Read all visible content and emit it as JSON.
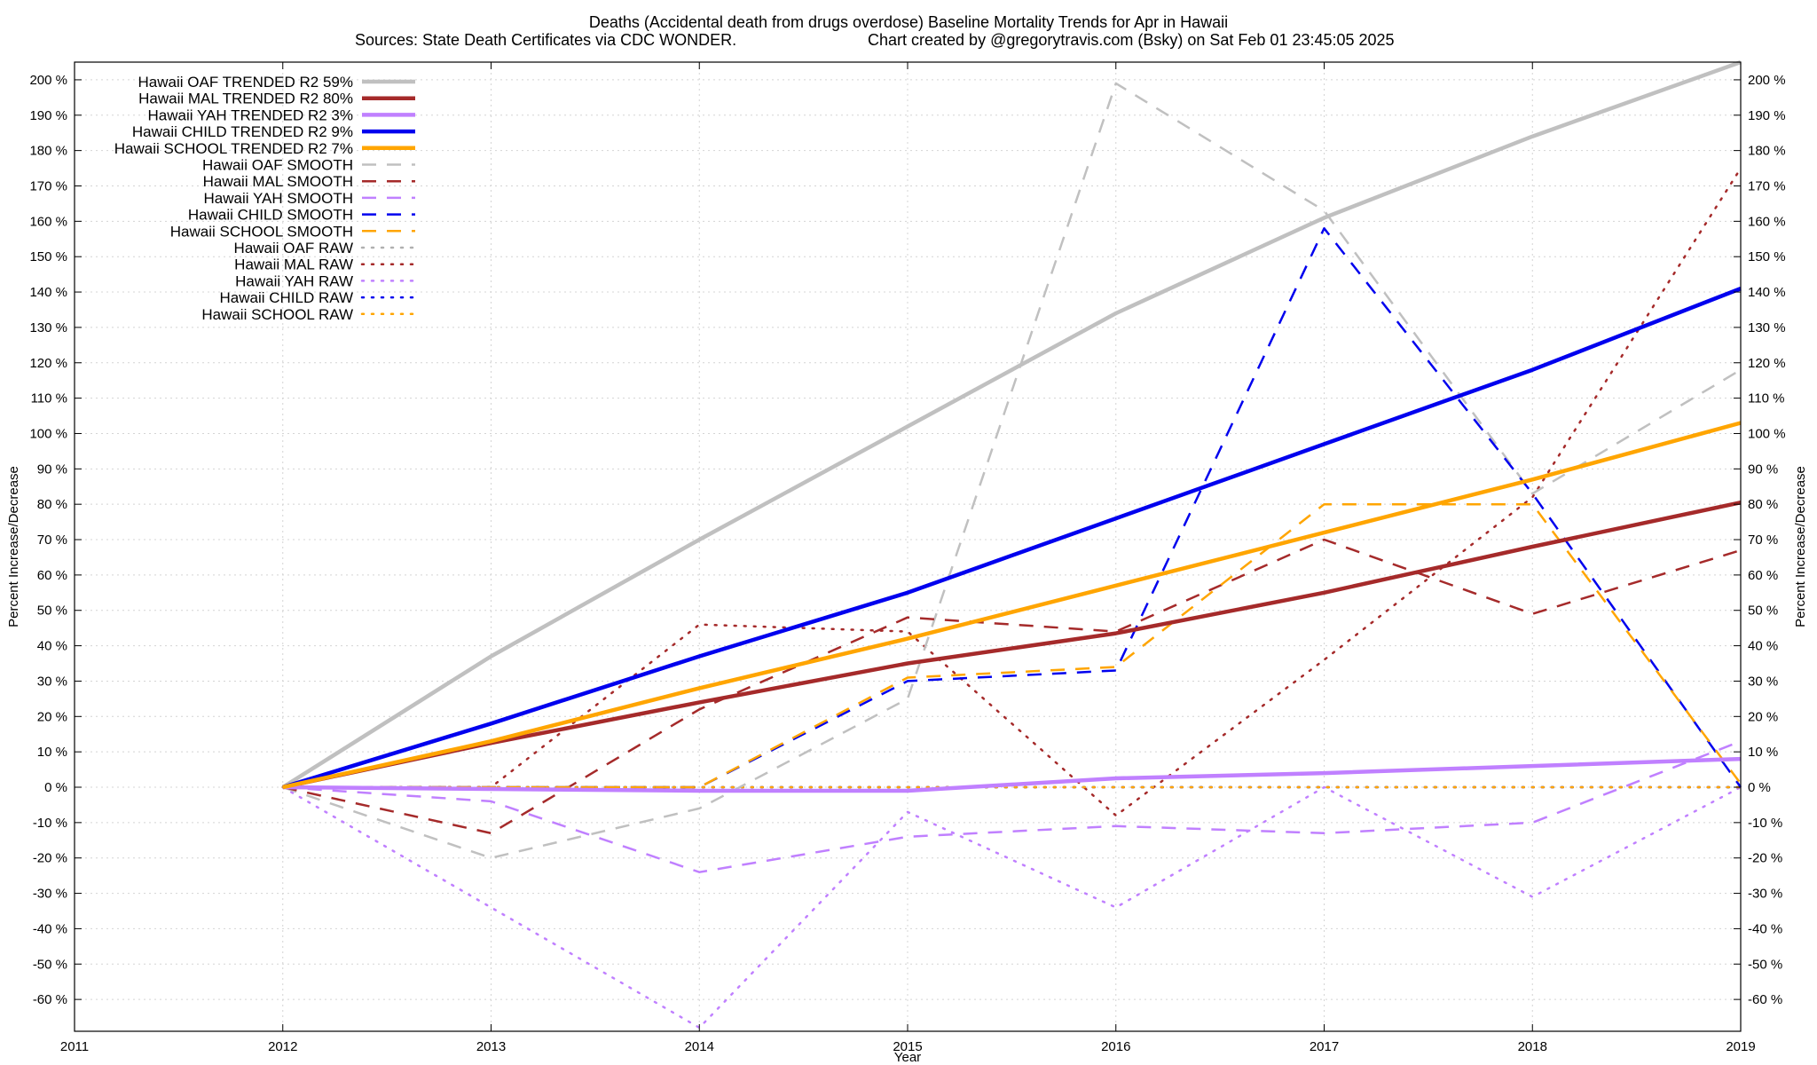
{
  "chart_data": {
    "type": "line",
    "title": "Deaths (Accidental death from drugs overdose)  Baseline Mortality Trends for Apr in Hawaii",
    "subtitle_left": "Sources: State Death Certificates via CDC WONDER.",
    "subtitle_right": "Chart created by @gregorytravis.com (Bsky) on Sat Feb 01 23:45:05 2025",
    "xlabel": "Year",
    "ylabel": "Percent Increase/Decrease",
    "y2label": "Percent Increase/Decrease",
    "xlim": [
      2011,
      2019
    ],
    "ylim": [
      -69,
      205
    ],
    "x_ticks": [
      2011,
      2012,
      2013,
      2014,
      2015,
      2016,
      2017,
      2018,
      2019
    ],
    "x_tick_labels": [
      "2011",
      "2012",
      "2013",
      "2014",
      "2015",
      "2016",
      "2017",
      "2018",
      "2019"
    ],
    "y_ticks": [
      -60,
      -50,
      -40,
      -30,
      -20,
      -10,
      0,
      10,
      20,
      30,
      40,
      50,
      60,
      70,
      80,
      90,
      100,
      110,
      120,
      130,
      140,
      150,
      160,
      170,
      180,
      190,
      200
    ],
    "y_tick_labels": [
      "-60 %",
      "-50 %",
      "-40 %",
      "-30 %",
      "-20 %",
      "-10 %",
      "0 %",
      "10 %",
      "20 %",
      "30 %",
      "40 %",
      "50 %",
      "60 %",
      "70 %",
      "80 %",
      "90 %",
      "100 %",
      "110 %",
      "120 %",
      "130 %",
      "140 %",
      "150 %",
      "160 %",
      "170 %",
      "180 %",
      "190 %",
      "200 %"
    ],
    "grid": true,
    "legend_position": "top-left",
    "x": [
      2012,
      2013,
      2014,
      2015,
      2016,
      2017,
      2018,
      2019
    ],
    "series": [
      {
        "name": "Hawaii OAF TRENDED R2  59%",
        "style": "solid",
        "color": "#c0c0c0",
        "width": 4.5,
        "values": [
          0,
          37,
          70,
          102,
          134,
          161,
          184,
          205
        ]
      },
      {
        "name": "Hawaii MAL TRENDED R2  80%",
        "style": "solid",
        "color": "#a52a2a",
        "width": 4.5,
        "values": [
          0,
          12.5,
          24,
          35,
          43.5,
          55,
          68,
          80.5
        ]
      },
      {
        "name": "Hawaii YAH TRENDED R2   3%",
        "style": "solid",
        "color": "#c080ff",
        "width": 4.5,
        "values": [
          0,
          -0.5,
          -1,
          -1,
          2.5,
          4,
          6,
          8
        ]
      },
      {
        "name": "Hawaii CHILD TRENDED R2   9%",
        "style": "solid",
        "color": "#0000ee",
        "width": 4.5,
        "values": [
          0,
          18,
          37,
          55,
          76,
          97,
          118,
          141
        ]
      },
      {
        "name": "Hawaii SCHOOL TRENDED R2   7%",
        "style": "solid",
        "color": "#ffa500",
        "width": 4.5,
        "values": [
          0,
          13,
          28,
          42,
          57,
          72,
          87,
          103
        ]
      },
      {
        "name": "Hawaii OAF SMOOTH",
        "style": "dash",
        "color": "#c0c0c0",
        "width": 2.5,
        "values": [
          0,
          -20,
          -6,
          25,
          199,
          163,
          83,
          118
        ]
      },
      {
        "name": "Hawaii MAL SMOOTH",
        "style": "dash",
        "color": "#a52a2a",
        "width": 2.5,
        "values": [
          0,
          -13,
          22,
          48,
          44,
          70,
          49,
          67
        ]
      },
      {
        "name": "Hawaii YAH SMOOTH",
        "style": "dash",
        "color": "#c080ff",
        "width": 2.5,
        "values": [
          0,
          -4,
          -24,
          -14,
          -11,
          -13,
          -10,
          13
        ]
      },
      {
        "name": "Hawaii CHILD SMOOTH",
        "style": "dash",
        "color": "#0000ee",
        "width": 2.5,
        "values": [
          0,
          0,
          0,
          30,
          33,
          158,
          83,
          0
        ]
      },
      {
        "name": "Hawaii SCHOOL SMOOTH",
        "style": "dash",
        "color": "#ffa500",
        "width": 2.5,
        "values": [
          0,
          0,
          0,
          31,
          34,
          80,
          80,
          1
        ]
      },
      {
        "name": "Hawaii OAF RAW",
        "style": "dot",
        "color": "#b0b0b0",
        "width": 2.5,
        "values": [
          0,
          0,
          0,
          0,
          0,
          0,
          0,
          0
        ]
      },
      {
        "name": "Hawaii MAL RAW",
        "style": "dot",
        "color": "#a52a2a",
        "width": 2.5,
        "values": [
          0,
          0,
          46,
          44,
          -8,
          36,
          82,
          175
        ]
      },
      {
        "name": "Hawaii YAH RAW",
        "style": "dot",
        "color": "#c080ff",
        "width": 2.5,
        "values": [
          0,
          -34,
          -68,
          -7,
          -34,
          0,
          -31,
          0
        ]
      },
      {
        "name": "Hawaii CHILD RAW",
        "style": "dot",
        "color": "#0000ee",
        "width": 2.5,
        "values": [
          0,
          0,
          0,
          0,
          0,
          0,
          0,
          0
        ]
      },
      {
        "name": "Hawaii SCHOOL RAW",
        "style": "dot",
        "color": "#ffa500",
        "width": 2.5,
        "values": [
          0,
          0,
          0,
          0,
          0,
          0,
          0,
          0
        ]
      }
    ]
  }
}
